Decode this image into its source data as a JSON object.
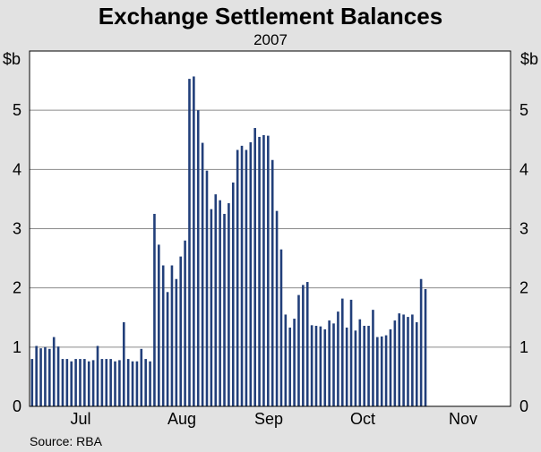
{
  "chart_data": {
    "type": "bar",
    "title": "Exchange Settlement Balances",
    "subtitle": "2007",
    "y_unit_left": "$b",
    "y_unit_right": "$b",
    "ylim": [
      0,
      6
    ],
    "yticks": [
      0,
      1,
      2,
      3,
      4,
      5
    ],
    "x_ticks": [
      "Jul",
      "Aug",
      "Sep",
      "Oct",
      "Nov"
    ],
    "grid": true,
    "source": "Source: RBA",
    "values": [
      0.8,
      1.02,
      0.98,
      1.0,
      0.97,
      1.17,
      1.01,
      0.8,
      0.8,
      0.76,
      0.8,
      0.8,
      0.8,
      0.76,
      0.78,
      1.02,
      0.8,
      0.8,
      0.8,
      0.76,
      0.78,
      1.42,
      0.8,
      0.76,
      0.76,
      0.97,
      0.8,
      0.76,
      3.25,
      2.73,
      2.38,
      1.93,
      2.38,
      2.15,
      2.53,
      2.8,
      5.53,
      5.57,
      5.0,
      4.45,
      3.98,
      3.33,
      3.58,
      3.48,
      3.25,
      3.43,
      3.78,
      4.33,
      4.4,
      4.33,
      4.46,
      4.7,
      4.55,
      4.58,
      4.57,
      4.16,
      3.3,
      2.65,
      1.55,
      1.33,
      1.48,
      1.88,
      2.05,
      2.1,
      1.37,
      1.36,
      1.35,
      1.3,
      1.45,
      1.4,
      1.6,
      1.82,
      1.33,
      1.8,
      1.28,
      1.47,
      1.36,
      1.36,
      1.63,
      1.17,
      1.18,
      1.2,
      1.3,
      1.45,
      1.57,
      1.55,
      1.51,
      1.55,
      1.42,
      2.15,
      1.98
    ]
  }
}
